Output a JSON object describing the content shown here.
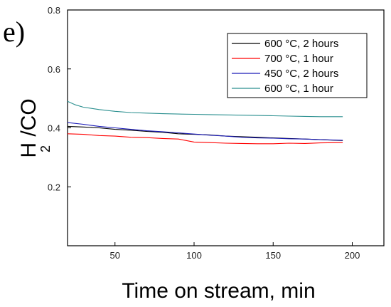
{
  "panel_label": "e)",
  "chart_data": {
    "type": "line",
    "xlabel": "Time on stream, min",
    "ylabel_main": "H /CO",
    "ylabel_sub": "2",
    "xlim": [
      20,
      220
    ],
    "ylim": [
      0.0,
      0.8
    ],
    "x_ticks": [
      50,
      100,
      150,
      200
    ],
    "y_ticks": [
      0.2,
      0.4,
      0.6,
      0.8
    ],
    "grid": false,
    "legend_position": "top-right",
    "series": [
      {
        "name": "600 °C, 2 hours",
        "color": "#000000",
        "x": [
          20,
          30,
          40,
          50,
          60,
          70,
          80,
          90,
          100,
          110,
          120,
          130,
          140,
          150,
          160,
          170,
          180,
          194
        ],
        "y": [
          0.405,
          0.403,
          0.4,
          0.395,
          0.392,
          0.388,
          0.385,
          0.38,
          0.378,
          0.376,
          0.372,
          0.37,
          0.368,
          0.366,
          0.364,
          0.362,
          0.36,
          0.357
        ]
      },
      {
        "name": "700 °C, 1 hour",
        "color": "#ff0000",
        "x": [
          20,
          30,
          40,
          50,
          60,
          70,
          80,
          90,
          100,
          110,
          120,
          130,
          140,
          150,
          160,
          170,
          180,
          194
        ],
        "y": [
          0.38,
          0.378,
          0.374,
          0.372,
          0.368,
          0.367,
          0.364,
          0.362,
          0.352,
          0.35,
          0.348,
          0.347,
          0.346,
          0.346,
          0.348,
          0.347,
          0.349,
          0.35
        ]
      },
      {
        "name": "450 °C, 2 hours",
        "color": "#1a1ab8",
        "x": [
          20,
          30,
          40,
          50,
          60,
          70,
          80,
          90,
          100,
          110,
          120,
          130,
          140,
          150,
          160,
          170,
          180,
          194
        ],
        "y": [
          0.418,
          0.412,
          0.405,
          0.4,
          0.395,
          0.39,
          0.387,
          0.383,
          0.379,
          0.375,
          0.372,
          0.368,
          0.366,
          0.365,
          0.363,
          0.362,
          0.36,
          0.358
        ]
      },
      {
        "name": "600 °C, 1 hour",
        "color": "#2a8f8f",
        "x": [
          20,
          25,
          30,
          40,
          50,
          60,
          70,
          80,
          90,
          100,
          110,
          120,
          130,
          140,
          150,
          160,
          170,
          180,
          194
        ],
        "y": [
          0.49,
          0.478,
          0.47,
          0.462,
          0.456,
          0.452,
          0.45,
          0.448,
          0.447,
          0.446,
          0.445,
          0.444,
          0.443,
          0.442,
          0.441,
          0.44,
          0.439,
          0.438,
          0.438
        ]
      }
    ]
  }
}
